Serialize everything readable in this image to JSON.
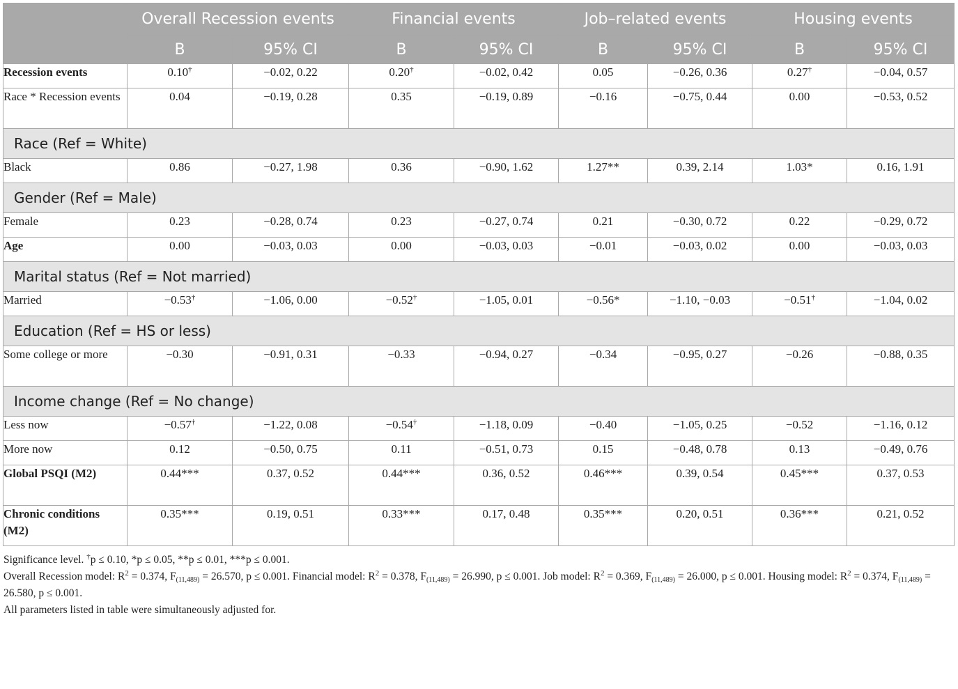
{
  "header": {
    "groups": [
      "Overall Recession events",
      "Financial events",
      "Job–related events",
      "Housing events"
    ],
    "b_label": "B",
    "ci_label": "95% CI"
  },
  "rows": [
    {
      "type": "data",
      "label": "Recession events",
      "bold": true,
      "tall": false,
      "cells": [
        [
          "0.10",
          "†"
        ],
        [
          "−0.02, 0.22",
          ""
        ],
        [
          "0.20",
          "†"
        ],
        [
          "−0.02, 0.42",
          ""
        ],
        [
          "0.05",
          ""
        ],
        [
          "−0.26, 0.36",
          ""
        ],
        [
          "0.27",
          "†"
        ],
        [
          "−0.04, 0.57",
          ""
        ]
      ]
    },
    {
      "type": "data",
      "label": "Race * Recession events",
      "bold": false,
      "tall": true,
      "cells": [
        [
          "0.04",
          ""
        ],
        [
          "−0.19, 0.28",
          ""
        ],
        [
          "0.35",
          ""
        ],
        [
          "−0.19, 0.89",
          ""
        ],
        [
          "−0.16",
          ""
        ],
        [
          "−0.75, 0.44",
          ""
        ],
        [
          "0.00",
          ""
        ],
        [
          "−0.53, 0.52",
          ""
        ]
      ]
    },
    {
      "type": "section",
      "label": "Race (Ref = White)"
    },
    {
      "type": "data",
      "label": "Black",
      "bold": false,
      "tall": false,
      "cells": [
        [
          "0.86",
          ""
        ],
        [
          "−0.27, 1.98",
          ""
        ],
        [
          "0.36",
          ""
        ],
        [
          "−0.90, 1.62",
          ""
        ],
        [
          "1.27**",
          ""
        ],
        [
          "0.39, 2.14",
          ""
        ],
        [
          "1.03*",
          ""
        ],
        [
          "0.16, 1.91",
          ""
        ]
      ]
    },
    {
      "type": "section",
      "label": "Gender (Ref = Male)"
    },
    {
      "type": "data",
      "label": "Female",
      "bold": false,
      "tall": false,
      "cells": [
        [
          "0.23",
          ""
        ],
        [
          "−0.28, 0.74",
          ""
        ],
        [
          "0.23",
          ""
        ],
        [
          "−0.27, 0.74",
          ""
        ],
        [
          "0.21",
          ""
        ],
        [
          "−0.30, 0.72",
          ""
        ],
        [
          "0.22",
          ""
        ],
        [
          "−0.29, 0.72",
          ""
        ]
      ]
    },
    {
      "type": "data",
      "label": "Age",
      "bold": true,
      "tall": false,
      "cells": [
        [
          "0.00",
          ""
        ],
        [
          "−0.03, 0.03",
          ""
        ],
        [
          "0.00",
          ""
        ],
        [
          "−0.03, 0.03",
          ""
        ],
        [
          "−0.01",
          ""
        ],
        [
          "−0.03, 0.02",
          ""
        ],
        [
          "0.00",
          ""
        ],
        [
          "−0.03, 0.03",
          ""
        ]
      ]
    },
    {
      "type": "section",
      "label": "Marital status (Ref = Not married)"
    },
    {
      "type": "data",
      "label": "Married",
      "bold": false,
      "tall": false,
      "cells": [
        [
          "−0.53",
          "†"
        ],
        [
          "−1.06, 0.00",
          ""
        ],
        [
          "−0.52",
          "†"
        ],
        [
          "−1.05, 0.01",
          ""
        ],
        [
          "−0.56*",
          ""
        ],
        [
          "−1.10, −0.03",
          ""
        ],
        [
          "−0.51",
          "†"
        ],
        [
          "−1.04, 0.02",
          ""
        ]
      ]
    },
    {
      "type": "section",
      "label": "Education (Ref = HS or less)"
    },
    {
      "type": "data",
      "label": "Some college or more",
      "bold": false,
      "tall": true,
      "cells": [
        [
          "−0.30",
          ""
        ],
        [
          "−0.91, 0.31",
          ""
        ],
        [
          "−0.33",
          ""
        ],
        [
          "−0.94, 0.27",
          ""
        ],
        [
          "−0.34",
          ""
        ],
        [
          "−0.95, 0.27",
          ""
        ],
        [
          "−0.26",
          ""
        ],
        [
          "−0.88, 0.35",
          ""
        ]
      ]
    },
    {
      "type": "section",
      "label": "Income change (Ref = No change)"
    },
    {
      "type": "data",
      "label": "Less now",
      "bold": false,
      "tall": false,
      "cells": [
        [
          "−0.57",
          "†"
        ],
        [
          "−1.22, 0.08",
          ""
        ],
        [
          "−0.54",
          "†"
        ],
        [
          "−1.18, 0.09",
          ""
        ],
        [
          "−0.40",
          ""
        ],
        [
          "−1.05, 0.25",
          ""
        ],
        [
          "−0.52",
          ""
        ],
        [
          "−1.16, 0.12",
          ""
        ]
      ]
    },
    {
      "type": "data",
      "label": "More now",
      "bold": false,
      "tall": false,
      "cells": [
        [
          "0.12",
          ""
        ],
        [
          "−0.50, 0.75",
          ""
        ],
        [
          "0.11",
          ""
        ],
        [
          "−0.51, 0.73",
          ""
        ],
        [
          "0.15",
          ""
        ],
        [
          "−0.48, 0.78",
          ""
        ],
        [
          "0.13",
          ""
        ],
        [
          "−0.49, 0.76",
          ""
        ]
      ]
    },
    {
      "type": "data",
      "label": "Global PSQI (M2)",
      "bold": true,
      "tall": true,
      "cells": [
        [
          "0.44***",
          ""
        ],
        [
          "0.37, 0.52",
          ""
        ],
        [
          "0.44***",
          ""
        ],
        [
          "0.36, 0.52",
          ""
        ],
        [
          "0.46***",
          ""
        ],
        [
          "0.39, 0.54",
          ""
        ],
        [
          "0.45***",
          ""
        ],
        [
          "0.37, 0.53",
          ""
        ]
      ]
    },
    {
      "type": "data",
      "label": "Chronic conditions (M2)",
      "bold": true,
      "tall": true,
      "cells": [
        [
          "0.35***",
          ""
        ],
        [
          "0.19, 0.51",
          ""
        ],
        [
          "0.33***",
          ""
        ],
        [
          "0.17, 0.48",
          ""
        ],
        [
          "0.35***",
          ""
        ],
        [
          "0.20, 0.51",
          ""
        ],
        [
          "0.36***",
          ""
        ],
        [
          "0.21, 0.52",
          ""
        ]
      ]
    }
  ],
  "notes": {
    "significance": {
      "prefix": "Significance level. ",
      "dagger": "†",
      "text": "p ≤ 0.10, *p ≤ 0.05, **p ≤ 0.01, ***p ≤ 0.001."
    },
    "models": [
      {
        "name": "Overall Recession model: R",
        "sup": "2",
        "mid": " = 0.374, F",
        "sub": "(11,489)",
        "end": " = 26.570, p ≤ 0.001. "
      },
      {
        "name": "Financial model: R",
        "sup": "2",
        "mid": " = 0.378, F",
        "sub": "(11,489)",
        "end": " = 26.990, p ≤ 0.001. "
      },
      {
        "name": "Job model: R",
        "sup": "2",
        "mid": " = 0.369, F",
        "sub": "(11,489)",
        "end": " = 26.000, p ≤ 0.001. "
      },
      {
        "name": "Housing model: R",
        "sup": "2",
        "mid": " = 0.374, F",
        "sub": "(11,489)",
        "end": " = 26.580, p ≤ 0.001."
      }
    ],
    "adjusted": "All parameters listed in table were simultaneously adjusted for."
  }
}
